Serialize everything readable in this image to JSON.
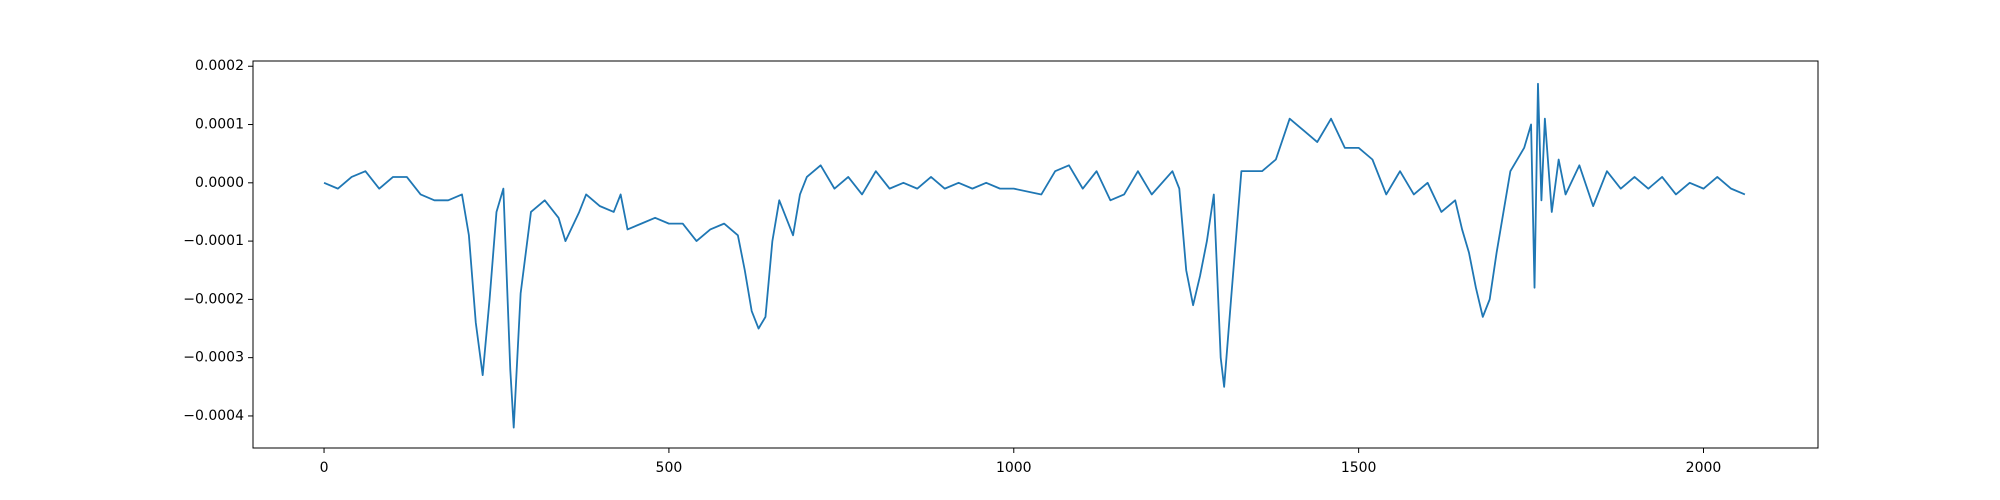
{
  "chart_data": {
    "type": "line",
    "x": [
      0,
      20,
      40,
      60,
      80,
      100,
      120,
      140,
      160,
      180,
      200,
      210,
      220,
      230,
      240,
      250,
      260,
      270,
      275,
      285,
      300,
      320,
      340,
      350,
      370,
      380,
      400,
      420,
      430,
      440,
      460,
      480,
      500,
      520,
      540,
      560,
      580,
      600,
      610,
      620,
      630,
      640,
      650,
      660,
      680,
      690,
      700,
      720,
      740,
      760,
      780,
      800,
      820,
      840,
      860,
      880,
      900,
      920,
      940,
      960,
      980,
      1000,
      1040,
      1060,
      1080,
      1100,
      1120,
      1140,
      1160,
      1180,
      1200,
      1230,
      1240,
      1250,
      1260,
      1270,
      1280,
      1290,
      1300,
      1305,
      1315,
      1330,
      1360,
      1380,
      1400,
      1420,
      1440,
      1460,
      1480,
      1500,
      1520,
      1540,
      1560,
      1580,
      1600,
      1620,
      1640,
      1650,
      1660,
      1670,
      1680,
      1690,
      1700,
      1710,
      1720,
      1740,
      1750,
      1755,
      1760,
      1765,
      1770,
      1780,
      1790,
      1800,
      1820,
      1840,
      1860,
      1880,
      1900,
      1920,
      1940,
      1960,
      1980,
      2000,
      2020,
      2040,
      2060
    ],
    "series": [
      {
        "color": "#1f77b4",
        "values": [
          0,
          -1e-05,
          1e-05,
          2e-05,
          -1e-05,
          1e-05,
          1e-05,
          -2e-05,
          -3e-05,
          -3e-05,
          -2e-05,
          -9e-05,
          -0.00024,
          -0.00033,
          -0.0002,
          -5e-05,
          -1e-05,
          -0.00032,
          -0.00042,
          -0.00019,
          -5e-05,
          -3e-05,
          -6e-05,
          -0.0001,
          -5e-05,
          -2e-05,
          -4e-05,
          -5e-05,
          -2e-05,
          -8e-05,
          -7e-05,
          -6e-05,
          -7e-05,
          -7e-05,
          -0.0001,
          -8e-05,
          -7e-05,
          -9e-05,
          -0.00015,
          -0.00022,
          -0.00025,
          -0.00023,
          -0.0001,
          -3e-05,
          -9e-05,
          -2e-05,
          1e-05,
          3e-05,
          -1e-05,
          1e-05,
          -2e-05,
          2e-05,
          -1e-05,
          0,
          -1e-05,
          1e-05,
          -1e-05,
          0,
          -1e-05,
          0,
          -1e-05,
          -1e-05,
          -2e-05,
          2e-05,
          3e-05,
          -1e-05,
          2e-05,
          -3e-05,
          -2e-05,
          2e-05,
          -2e-05,
          2e-05,
          -1e-05,
          -0.00015,
          -0.00021,
          -0.00016,
          -0.0001,
          -2e-05,
          -0.0003,
          -0.00035,
          -0.0002,
          2e-05,
          2e-05,
          4e-05,
          0.00011,
          9e-05,
          7e-05,
          0.00011,
          6e-05,
          6e-05,
          4e-05,
          -2e-05,
          2e-05,
          -2e-05,
          0,
          -5e-05,
          -3e-05,
          -8e-05,
          -0.00012,
          -0.00018,
          -0.00023,
          -0.0002,
          -0.00012,
          -5e-05,
          2e-05,
          6e-05,
          0.0001,
          -0.00018,
          0.00017,
          -3e-05,
          0.00011,
          -5e-05,
          4e-05,
          -2e-05,
          3e-05,
          -4e-05,
          2e-05,
          -1e-05,
          1e-05,
          -1e-05,
          1e-05,
          -2e-05,
          0,
          -1e-05,
          1e-05,
          -1e-05,
          -2e-05
        ]
      }
    ],
    "xlim": [
      -103,
      2166
    ],
    "ylim": [
      -0.000455,
      0.000209
    ],
    "xticks": [
      0,
      500,
      1000,
      1500,
      2000
    ],
    "yticks": [
      {
        "value": 0.0002,
        "label": "0.0002"
      },
      {
        "value": 0.0001,
        "label": "0.0001"
      },
      {
        "value": 0,
        "label": "0.0000"
      },
      {
        "value": -0.0001,
        "label": "−0.0001"
      },
      {
        "value": -0.0002,
        "label": "−0.0002"
      },
      {
        "value": -0.0003,
        "label": "−0.0003"
      },
      {
        "value": -0.0004,
        "label": "−0.0004"
      }
    ]
  }
}
